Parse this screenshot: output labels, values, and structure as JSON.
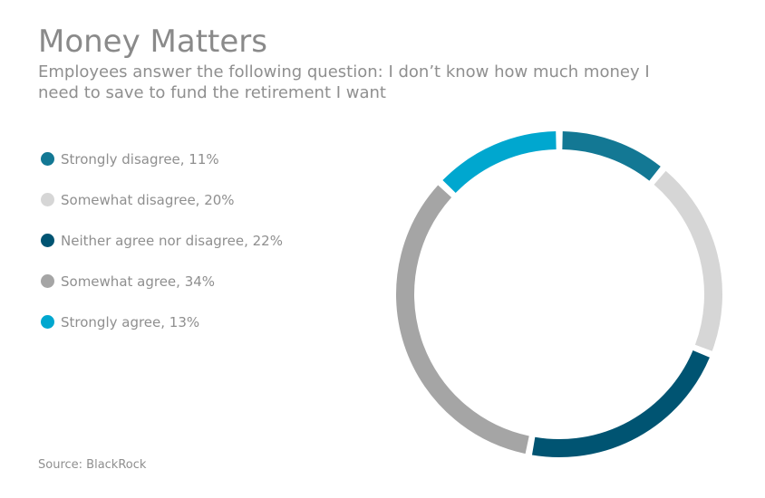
{
  "header": {
    "title": "Money Matters",
    "subtitle": "Employees answer the following question: I don’t know how much money I need to save to fund the retirement I want"
  },
  "legend": {
    "items": [
      {
        "label": "Strongly disagree, 11%",
        "color": "#137894"
      },
      {
        "label": "Somewhat disagree, 20%",
        "color": "#d6d6d6"
      },
      {
        "label": "Neither agree nor disagree, 22%",
        "color": "#005472"
      },
      {
        "label": "Somewhat agree, 34%",
        "color": "#a5a5a5"
      },
      {
        "label": "Strongly agree, 13%",
        "color": "#00a7cf"
      }
    ]
  },
  "footer": {
    "source": "Source: BlackRock"
  },
  "chart_data": {
    "type": "pie",
    "title": "Money Matters",
    "subtitle": "Employees answer the following question: I don’t know how much money I need to save to fund the retirement I want",
    "categories": [
      "Strongly disagree",
      "Somewhat disagree",
      "Neither agree nor disagree",
      "Somewhat agree",
      "Strongly agree"
    ],
    "values": [
      11,
      20,
      22,
      34,
      13
    ],
    "unit": "%",
    "colors": [
      "#137894",
      "#d6d6d6",
      "#005472",
      "#a5a5a5",
      "#00a7cf"
    ],
    "legend": "left",
    "style": "donut"
  }
}
